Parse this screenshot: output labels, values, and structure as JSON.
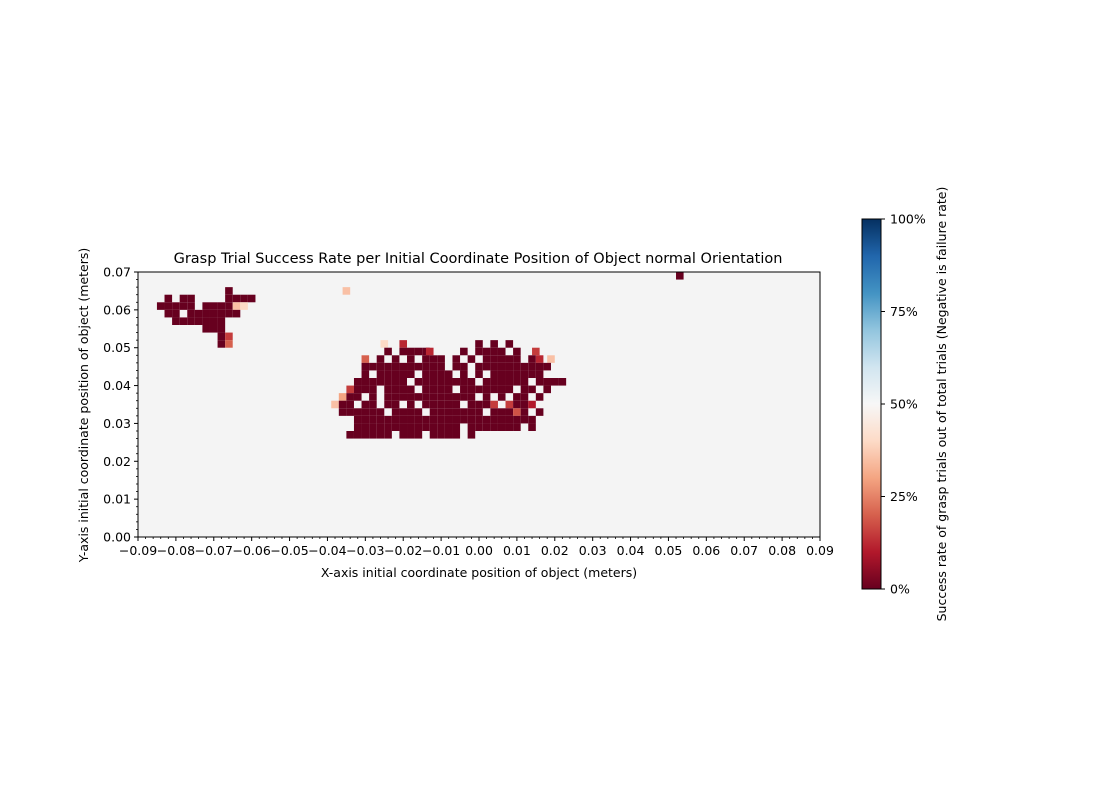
{
  "chart_data": {
    "type": "heatmap",
    "title": "Grasp Trial Success Rate per Initial Coordinate Position of Object normal Orientation",
    "xlabel": "X-axis initial coordinate position of object (meters)",
    "ylabel": "Y-axis initial coordinate position of object (meters)",
    "xlim": [
      -0.09,
      0.09
    ],
    "ylim": [
      0.0,
      0.07
    ],
    "x_ticks": [
      "−0.09",
      "−0.08",
      "−0.07",
      "−0.06",
      "−0.05",
      "−0.04",
      "−0.03",
      "−0.02",
      "−0.01",
      "0.00",
      "0.01",
      "0.02",
      "0.03",
      "0.04",
      "0.05",
      "0.06",
      "0.07",
      "0.08",
      "0.09"
    ],
    "y_ticks": [
      "0.00",
      "0.01",
      "0.02",
      "0.03",
      "0.04",
      "0.05",
      "0.06",
      "0.07"
    ],
    "grid": false,
    "background_color": "#f4f4f4",
    "colorscale": "RdBu",
    "colorbar": {
      "label": "Success rate of grasp trials out of total trials (Negative is failure rate)",
      "range": [
        0,
        100
      ],
      "ticks": [
        "0%",
        "25%",
        "50%",
        "75%",
        "100%"
      ]
    },
    "cell_size": 0.002,
    "cells": [
      [
        -0.082,
        0.063,
        0
      ],
      [
        -0.078,
        0.063,
        0
      ],
      [
        -0.076,
        0.063,
        0
      ],
      [
        -0.066,
        0.065,
        0
      ],
      [
        -0.066,
        0.063,
        0
      ],
      [
        -0.064,
        0.063,
        0
      ],
      [
        -0.062,
        0.063,
        0
      ],
      [
        -0.06,
        0.063,
        0
      ],
      [
        -0.084,
        0.061,
        0
      ],
      [
        -0.082,
        0.061,
        0
      ],
      [
        -0.08,
        0.061,
        0
      ],
      [
        -0.078,
        0.061,
        0
      ],
      [
        -0.076,
        0.061,
        0
      ],
      [
        -0.072,
        0.061,
        0
      ],
      [
        -0.07,
        0.061,
        0
      ],
      [
        -0.068,
        0.061,
        0
      ],
      [
        -0.066,
        0.061,
        0
      ],
      [
        -0.064,
        0.061,
        35
      ],
      [
        -0.062,
        0.061,
        40
      ],
      [
        -0.082,
        0.059,
        0
      ],
      [
        -0.08,
        0.059,
        0
      ],
      [
        -0.076,
        0.059,
        0
      ],
      [
        -0.074,
        0.059,
        0
      ],
      [
        -0.072,
        0.059,
        0
      ],
      [
        -0.07,
        0.059,
        0
      ],
      [
        -0.068,
        0.059,
        0
      ],
      [
        -0.066,
        0.059,
        0
      ],
      [
        -0.064,
        0.059,
        0
      ],
      [
        -0.08,
        0.057,
        0
      ],
      [
        -0.078,
        0.057,
        0
      ],
      [
        -0.076,
        0.057,
        0
      ],
      [
        -0.074,
        0.057,
        0
      ],
      [
        -0.072,
        0.057,
        0
      ],
      [
        -0.07,
        0.057,
        0
      ],
      [
        -0.068,
        0.057,
        0
      ],
      [
        -0.072,
        0.055,
        0
      ],
      [
        -0.07,
        0.055,
        0
      ],
      [
        -0.068,
        0.055,
        0
      ],
      [
        -0.068,
        0.053,
        0
      ],
      [
        -0.066,
        0.053,
        15
      ],
      [
        -0.068,
        0.051,
        0
      ],
      [
        -0.066,
        0.051,
        20
      ],
      [
        -0.035,
        0.065,
        35
      ],
      [
        -0.025,
        0.051,
        40
      ],
      [
        -0.02,
        0.051,
        12
      ],
      [
        -0.0,
        0.051,
        0
      ],
      [
        0.004,
        0.051,
        0
      ],
      [
        0.008,
        0.051,
        0
      ],
      [
        -0.024,
        0.049,
        0
      ],
      [
        -0.02,
        0.049,
        0
      ],
      [
        -0.018,
        0.049,
        0
      ],
      [
        -0.016,
        0.049,
        0
      ],
      [
        -0.014,
        0.049,
        0
      ],
      [
        -0.013,
        0.049,
        12
      ],
      [
        -0.004,
        0.049,
        0
      ],
      [
        0.0,
        0.049,
        0
      ],
      [
        0.002,
        0.049,
        0
      ],
      [
        0.004,
        0.049,
        0
      ],
      [
        0.006,
        0.049,
        0
      ],
      [
        0.01,
        0.049,
        0
      ],
      [
        0.015,
        0.049,
        15
      ],
      [
        -0.03,
        0.047,
        20
      ],
      [
        -0.026,
        0.047,
        0
      ],
      [
        -0.022,
        0.047,
        0
      ],
      [
        -0.018,
        0.047,
        0
      ],
      [
        -0.014,
        0.047,
        0
      ],
      [
        -0.012,
        0.047,
        0
      ],
      [
        -0.01,
        0.047,
        0
      ],
      [
        -0.006,
        0.047,
        0
      ],
      [
        -0.002,
        0.047,
        0
      ],
      [
        0.002,
        0.047,
        0
      ],
      [
        0.004,
        0.047,
        0
      ],
      [
        0.006,
        0.047,
        0
      ],
      [
        0.008,
        0.047,
        0
      ],
      [
        0.01,
        0.047,
        0
      ],
      [
        0.014,
        0.047,
        0
      ],
      [
        0.016,
        0.047,
        12
      ],
      [
        0.019,
        0.047,
        35
      ],
      [
        -0.03,
        0.045,
        0
      ],
      [
        -0.028,
        0.045,
        0
      ],
      [
        -0.026,
        0.045,
        0
      ],
      [
        -0.024,
        0.045,
        0
      ],
      [
        -0.022,
        0.045,
        0
      ],
      [
        -0.02,
        0.045,
        0
      ],
      [
        -0.018,
        0.045,
        0
      ],
      [
        -0.016,
        0.045,
        0
      ],
      [
        -0.014,
        0.045,
        0
      ],
      [
        -0.012,
        0.045,
        0
      ],
      [
        -0.01,
        0.045,
        0
      ],
      [
        -0.006,
        0.045,
        0
      ],
      [
        -0.004,
        0.045,
        0
      ],
      [
        0.0,
        0.045,
        0
      ],
      [
        0.002,
        0.045,
        0
      ],
      [
        0.004,
        0.045,
        0
      ],
      [
        0.006,
        0.045,
        0
      ],
      [
        0.008,
        0.045,
        0
      ],
      [
        0.01,
        0.045,
        0
      ],
      [
        0.012,
        0.045,
        0
      ],
      [
        0.014,
        0.045,
        0
      ],
      [
        0.016,
        0.045,
        0
      ],
      [
        0.018,
        0.045,
        0
      ],
      [
        -0.03,
        0.043,
        0
      ],
      [
        -0.026,
        0.043,
        0
      ],
      [
        -0.024,
        0.043,
        0
      ],
      [
        -0.022,
        0.043,
        0
      ],
      [
        -0.02,
        0.043,
        0
      ],
      [
        -0.018,
        0.043,
        0
      ],
      [
        -0.014,
        0.043,
        0
      ],
      [
        -0.012,
        0.043,
        0
      ],
      [
        -0.01,
        0.043,
        0
      ],
      [
        -0.008,
        0.043,
        0
      ],
      [
        -0.004,
        0.043,
        0
      ],
      [
        0.0,
        0.043,
        0
      ],
      [
        0.004,
        0.043,
        0
      ],
      [
        0.006,
        0.043,
        0
      ],
      [
        0.008,
        0.043,
        0
      ],
      [
        0.01,
        0.043,
        0
      ],
      [
        0.012,
        0.043,
        0
      ],
      [
        0.014,
        0.043,
        0
      ],
      [
        0.016,
        0.043,
        0
      ],
      [
        -0.032,
        0.041,
        0
      ],
      [
        -0.03,
        0.041,
        0
      ],
      [
        -0.028,
        0.041,
        0
      ],
      [
        -0.026,
        0.041,
        0
      ],
      [
        -0.024,
        0.041,
        0
      ],
      [
        -0.022,
        0.041,
        0
      ],
      [
        -0.02,
        0.041,
        0
      ],
      [
        -0.016,
        0.041,
        0
      ],
      [
        -0.014,
        0.041,
        0
      ],
      [
        -0.012,
        0.041,
        0
      ],
      [
        -0.01,
        0.041,
        0
      ],
      [
        -0.008,
        0.041,
        0
      ],
      [
        -0.006,
        0.041,
        0
      ],
      [
        -0.004,
        0.041,
        0
      ],
      [
        -0.002,
        0.041,
        0
      ],
      [
        0.002,
        0.041,
        0
      ],
      [
        0.004,
        0.041,
        0
      ],
      [
        0.006,
        0.041,
        0
      ],
      [
        0.008,
        0.041,
        0
      ],
      [
        0.01,
        0.041,
        0
      ],
      [
        0.012,
        0.041,
        0
      ],
      [
        0.016,
        0.041,
        0
      ],
      [
        0.018,
        0.041,
        0
      ],
      [
        0.02,
        0.041,
        0
      ],
      [
        0.022,
        0.041,
        0
      ],
      [
        -0.034,
        0.039,
        15
      ],
      [
        -0.032,
        0.039,
        0
      ],
      [
        -0.03,
        0.039,
        0
      ],
      [
        -0.028,
        0.039,
        0
      ],
      [
        -0.024,
        0.039,
        0
      ],
      [
        -0.022,
        0.039,
        0
      ],
      [
        -0.02,
        0.039,
        0
      ],
      [
        -0.018,
        0.039,
        0
      ],
      [
        -0.014,
        0.039,
        0
      ],
      [
        -0.012,
        0.039,
        0
      ],
      [
        -0.01,
        0.039,
        0
      ],
      [
        -0.008,
        0.039,
        0
      ],
      [
        -0.004,
        0.039,
        0
      ],
      [
        -0.002,
        0.039,
        0
      ],
      [
        0.0,
        0.039,
        0
      ],
      [
        0.002,
        0.039,
        0
      ],
      [
        0.004,
        0.039,
        0
      ],
      [
        0.006,
        0.039,
        0
      ],
      [
        0.008,
        0.039,
        0
      ],
      [
        0.012,
        0.039,
        0
      ],
      [
        0.014,
        0.039,
        0
      ],
      [
        0.018,
        0.039,
        0
      ],
      [
        -0.036,
        0.037,
        30
      ],
      [
        -0.034,
        0.037,
        0
      ],
      [
        -0.032,
        0.037,
        0
      ],
      [
        -0.028,
        0.037,
        0
      ],
      [
        -0.024,
        0.037,
        0
      ],
      [
        -0.022,
        0.037,
        0
      ],
      [
        -0.02,
        0.037,
        0
      ],
      [
        -0.018,
        0.037,
        0
      ],
      [
        -0.016,
        0.037,
        0
      ],
      [
        -0.014,
        0.037,
        0
      ],
      [
        -0.012,
        0.037,
        0
      ],
      [
        -0.01,
        0.037,
        0
      ],
      [
        -0.008,
        0.037,
        0
      ],
      [
        -0.006,
        0.037,
        0
      ],
      [
        -0.004,
        0.037,
        0
      ],
      [
        -0.002,
        0.037,
        0
      ],
      [
        0.002,
        0.037,
        0
      ],
      [
        0.006,
        0.037,
        0
      ],
      [
        0.01,
        0.037,
        0
      ],
      [
        0.012,
        0.037,
        0
      ],
      [
        0.016,
        0.037,
        0
      ],
      [
        -0.038,
        0.035,
        35
      ],
      [
        -0.036,
        0.035,
        0
      ],
      [
        -0.034,
        0.035,
        0
      ],
      [
        -0.03,
        0.035,
        0
      ],
      [
        -0.028,
        0.035,
        0
      ],
      [
        -0.024,
        0.035,
        0
      ],
      [
        -0.022,
        0.035,
        0
      ],
      [
        -0.018,
        0.035,
        0
      ],
      [
        -0.014,
        0.035,
        0
      ],
      [
        -0.012,
        0.035,
        0
      ],
      [
        -0.01,
        0.035,
        0
      ],
      [
        -0.008,
        0.035,
        0
      ],
      [
        -0.006,
        0.035,
        0
      ],
      [
        -0.002,
        0.035,
        0
      ],
      [
        0.0,
        0.035,
        0
      ],
      [
        0.002,
        0.035,
        0
      ],
      [
        0.004,
        0.035,
        15
      ],
      [
        0.008,
        0.035,
        15
      ],
      [
        0.01,
        0.035,
        0
      ],
      [
        0.012,
        0.035,
        0
      ],
      [
        0.014,
        0.035,
        10
      ],
      [
        -0.036,
        0.033,
        0
      ],
      [
        -0.034,
        0.033,
        0
      ],
      [
        -0.032,
        0.033,
        0
      ],
      [
        -0.03,
        0.033,
        0
      ],
      [
        -0.028,
        0.033,
        0
      ],
      [
        -0.026,
        0.033,
        0
      ],
      [
        -0.022,
        0.033,
        0
      ],
      [
        -0.02,
        0.033,
        0
      ],
      [
        -0.018,
        0.033,
        0
      ],
      [
        -0.016,
        0.033,
        0
      ],
      [
        -0.012,
        0.033,
        0
      ],
      [
        -0.01,
        0.033,
        0
      ],
      [
        -0.008,
        0.033,
        0
      ],
      [
        -0.006,
        0.033,
        0
      ],
      [
        -0.004,
        0.033,
        0
      ],
      [
        -0.002,
        0.033,
        0
      ],
      [
        0.0,
        0.033,
        0
      ],
      [
        0.004,
        0.033,
        0
      ],
      [
        0.006,
        0.033,
        0
      ],
      [
        0.008,
        0.033,
        0
      ],
      [
        0.01,
        0.033,
        18
      ],
      [
        0.012,
        0.033,
        0
      ],
      [
        0.016,
        0.033,
        0
      ],
      [
        -0.032,
        0.031,
        0
      ],
      [
        -0.03,
        0.031,
        0
      ],
      [
        -0.028,
        0.031,
        0
      ],
      [
        -0.026,
        0.031,
        0
      ],
      [
        -0.024,
        0.031,
        0
      ],
      [
        -0.022,
        0.031,
        0
      ],
      [
        -0.02,
        0.031,
        0
      ],
      [
        -0.018,
        0.031,
        0
      ],
      [
        -0.016,
        0.031,
        0
      ],
      [
        -0.014,
        0.031,
        0
      ],
      [
        -0.012,
        0.031,
        0
      ],
      [
        -0.01,
        0.031,
        0
      ],
      [
        -0.008,
        0.031,
        0
      ],
      [
        -0.006,
        0.031,
        0
      ],
      [
        -0.004,
        0.031,
        0
      ],
      [
        -0.002,
        0.031,
        0
      ],
      [
        0.0,
        0.031,
        0
      ],
      [
        0.002,
        0.031,
        0
      ],
      [
        0.004,
        0.031,
        0
      ],
      [
        0.006,
        0.031,
        0
      ],
      [
        0.008,
        0.031,
        0
      ],
      [
        0.01,
        0.031,
        0
      ],
      [
        0.012,
        0.031,
        0
      ],
      [
        0.014,
        0.031,
        0
      ],
      [
        -0.032,
        0.029,
        0
      ],
      [
        -0.03,
        0.029,
        0
      ],
      [
        -0.028,
        0.029,
        0
      ],
      [
        -0.026,
        0.029,
        0
      ],
      [
        -0.024,
        0.029,
        0
      ],
      [
        -0.022,
        0.029,
        0
      ],
      [
        -0.02,
        0.029,
        0
      ],
      [
        -0.018,
        0.029,
        0
      ],
      [
        -0.016,
        0.029,
        0
      ],
      [
        -0.014,
        0.029,
        0
      ],
      [
        -0.012,
        0.029,
        0
      ],
      [
        -0.01,
        0.029,
        0
      ],
      [
        -0.008,
        0.029,
        0
      ],
      [
        -0.006,
        0.029,
        0
      ],
      [
        -0.002,
        0.029,
        0
      ],
      [
        0.0,
        0.029,
        0
      ],
      [
        0.002,
        0.029,
        0
      ],
      [
        0.004,
        0.029,
        0
      ],
      [
        0.006,
        0.029,
        0
      ],
      [
        0.008,
        0.029,
        0
      ],
      [
        0.01,
        0.029,
        0
      ],
      [
        0.014,
        0.029,
        0
      ],
      [
        -0.034,
        0.027,
        0
      ],
      [
        -0.032,
        0.027,
        0
      ],
      [
        -0.03,
        0.027,
        0
      ],
      [
        -0.028,
        0.027,
        0
      ],
      [
        -0.026,
        0.027,
        0
      ],
      [
        -0.024,
        0.027,
        0
      ],
      [
        -0.02,
        0.027,
        0
      ],
      [
        -0.018,
        0.027,
        0
      ],
      [
        -0.016,
        0.027,
        0
      ],
      [
        -0.012,
        0.027,
        0
      ],
      [
        -0.01,
        0.027,
        0
      ],
      [
        -0.008,
        0.027,
        0
      ],
      [
        -0.006,
        0.027,
        0
      ],
      [
        -0.002,
        0.027,
        0
      ],
      [
        0.053,
        0.069,
        0
      ]
    ]
  }
}
